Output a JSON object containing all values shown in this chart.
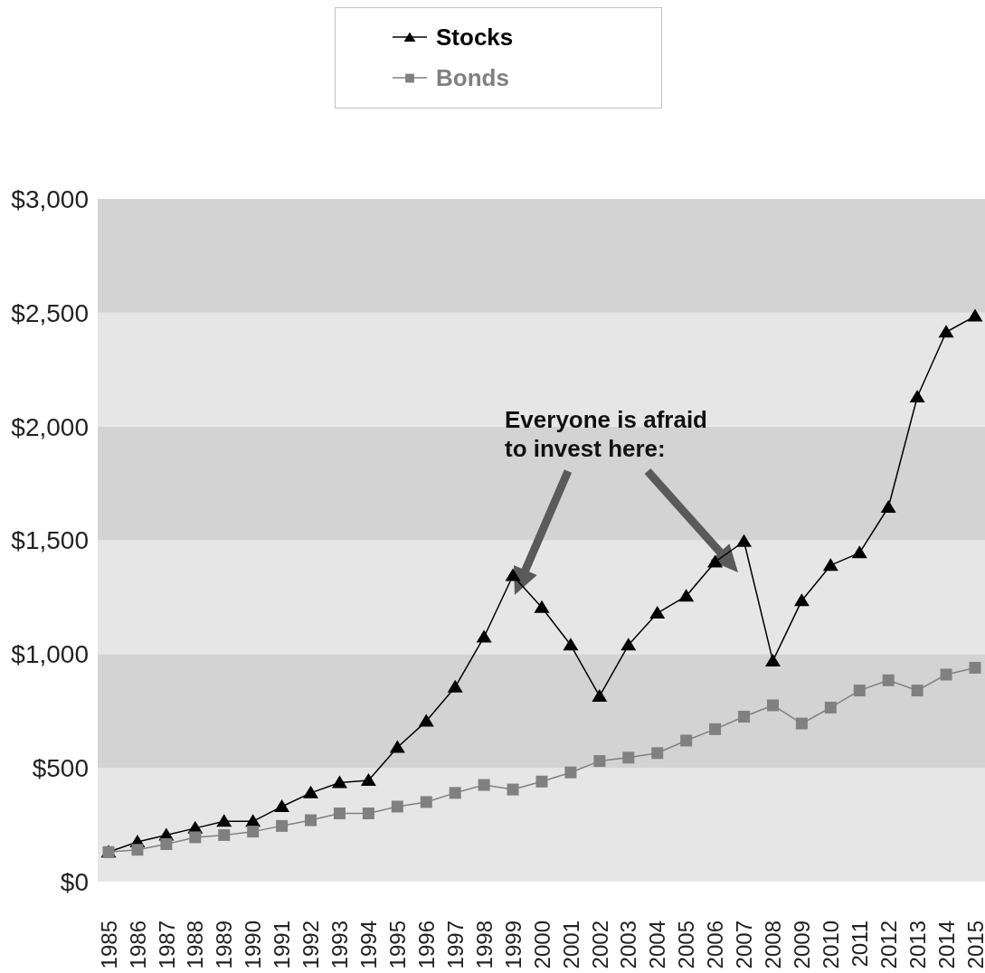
{
  "chart_data": {
    "type": "line",
    "categories": [
      "1985",
      "1986",
      "1987",
      "1988",
      "1989",
      "1990",
      "1991",
      "1992",
      "1993",
      "1994",
      "1995",
      "1996",
      "1997",
      "1998",
      "1999",
      "2000",
      "2001",
      "2002",
      "2003",
      "2004",
      "2005",
      "2006",
      "2007",
      "2008",
      "2009",
      "2010",
      "2011",
      "2012",
      "2013",
      "2014",
      "2015"
    ],
    "series": [
      {
        "name": "Stocks",
        "color": "#000000",
        "marker": "triangle",
        "values": [
          130,
          175,
          205,
          235,
          265,
          265,
          330,
          390,
          435,
          445,
          590,
          705,
          855,
          1075,
          1345,
          1205,
          1040,
          815,
          1040,
          1180,
          1255,
          1405,
          1495,
          970,
          1235,
          1390,
          1445,
          1645,
          2130,
          2415,
          2485
        ]
      },
      {
        "name": "Bonds",
        "color": "#808080",
        "marker": "square",
        "values": [
          130,
          140,
          165,
          195,
          205,
          220,
          245,
          270,
          300,
          300,
          330,
          350,
          390,
          425,
          405,
          440,
          480,
          530,
          545,
          565,
          620,
          670,
          725,
          775,
          695,
          765,
          840,
          885,
          840,
          910,
          940
        ]
      }
    ],
    "ylim": [
      0,
      3000
    ],
    "yticks": [
      {
        "value": 0,
        "label": "$0"
      },
      {
        "value": 500,
        "label": "$500"
      },
      {
        "value": 1000,
        "label": "$1,000"
      },
      {
        "value": 1500,
        "label": "$1,500"
      },
      {
        "value": 2000,
        "label": "$2,000"
      },
      {
        "value": 2500,
        "label": "$2,500"
      },
      {
        "value": 3000,
        "label": "$3,000"
      }
    ],
    "bands": [
      {
        "axis": "y",
        "from": 0,
        "to": 500,
        "color": "#e6e6e6"
      },
      {
        "axis": "y",
        "from": 500,
        "to": 1000,
        "color": "#d3d3d3"
      },
      {
        "axis": "y",
        "from": 1000,
        "to": 1500,
        "color": "#e6e6e6"
      },
      {
        "axis": "y",
        "from": 1500,
        "to": 2000,
        "color": "#d3d3d3"
      },
      {
        "axis": "y",
        "from": 2000,
        "to": 2500,
        "color": "#e6e6e6"
      },
      {
        "axis": "y",
        "from": 2500,
        "to": 3000,
        "color": "#d3d3d3"
      }
    ],
    "annotations": [
      "Everyone is afraid\nto invest here:"
    ],
    "legend": "top"
  }
}
